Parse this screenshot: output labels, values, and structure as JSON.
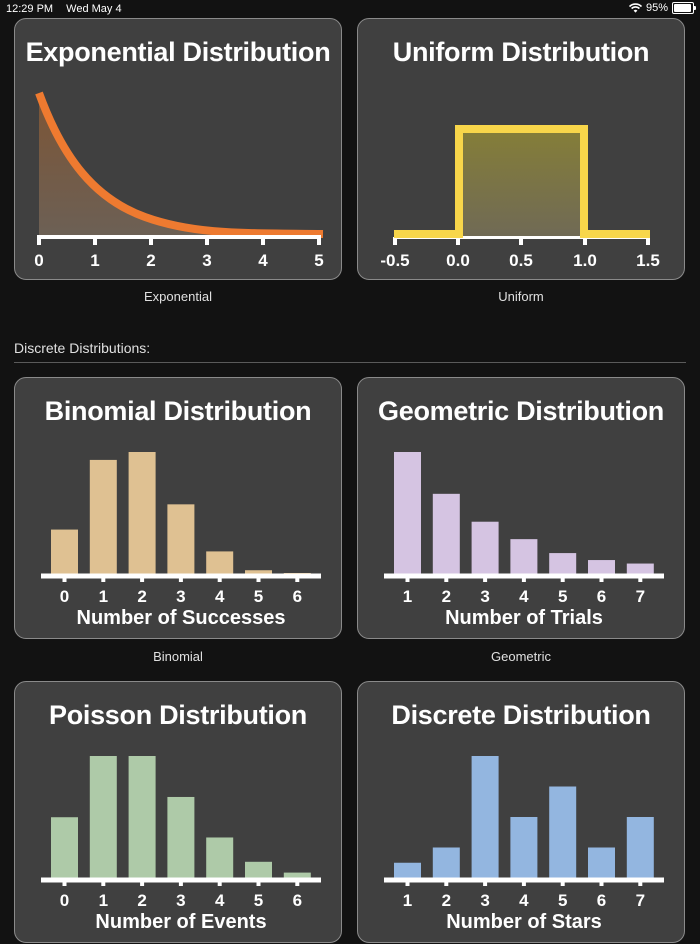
{
  "status_bar": {
    "time": "12:29 PM",
    "date": "Wed May 4",
    "battery": "95%",
    "battery_pct": 95
  },
  "continuous": {
    "cards": [
      {
        "title": "Exponential Distribution",
        "caption": "Exponential"
      },
      {
        "title": "Uniform Distribution",
        "caption": "Uniform"
      }
    ]
  },
  "section": {
    "label": "Discrete Distributions:"
  },
  "discrete": {
    "cards": [
      {
        "title": "Binomial Distribution",
        "caption": "Binomial",
        "xlabel": "Number of Successes"
      },
      {
        "title": "Geometric Distribution",
        "caption": "Geometric",
        "xlabel": "Number of Trials"
      },
      {
        "title": "Poisson Distribution",
        "caption": "",
        "xlabel": "Number of Events"
      },
      {
        "title": "Discrete Distribution",
        "caption": "",
        "xlabel": "Number of Stars"
      }
    ]
  },
  "chart_data": [
    {
      "type": "area",
      "title": "Exponential Distribution",
      "x": [
        0,
        1,
        2,
        3,
        4,
        5
      ],
      "xticks": [
        "0",
        "1",
        "2",
        "3",
        "4",
        "5"
      ],
      "y_shape": "exp(-x)",
      "color": "#ee7a30",
      "fill": "#7a5a42"
    },
    {
      "type": "area",
      "title": "Uniform Distribution",
      "x": [
        -0.5,
        0.0,
        0.5,
        1.0,
        1.5
      ],
      "xticks": [
        "-0.5",
        "0.0",
        "0.5",
        "1.0",
        "1.5"
      ],
      "support": [
        0,
        1
      ],
      "color": "#f8d64a",
      "fill": "#7f7a42"
    },
    {
      "type": "bar",
      "title": "Binomial Distribution",
      "xlabel": "Number of Successes",
      "categories": [
        "0",
        "1",
        "2",
        "3",
        "4",
        "5",
        "6"
      ],
      "values": [
        0.118,
        0.303,
        0.324,
        0.185,
        0.06,
        0.01,
        0.001
      ],
      "color": "#dfc192"
    },
    {
      "type": "bar",
      "title": "Geometric Distribution",
      "xlabel": "Number of Trials",
      "categories": [
        "1",
        "2",
        "3",
        "4",
        "5",
        "6",
        "7"
      ],
      "values": [
        0.35,
        0.23,
        0.15,
        0.1,
        0.06,
        0.04,
        0.03
      ],
      "color": "#d5c4e2"
    },
    {
      "type": "bar",
      "title": "Poisson Distribution",
      "xlabel": "Number of Events",
      "categories": [
        "0",
        "1",
        "2",
        "3",
        "4",
        "5",
        "6"
      ],
      "values": [
        0.135,
        0.271,
        0.271,
        0.18,
        0.09,
        0.036,
        0.012
      ],
      "color": "#aecaa8"
    },
    {
      "type": "bar",
      "title": "Discrete Distribution",
      "xlabel": "Number of Stars",
      "categories": [
        "1",
        "2",
        "3",
        "4",
        "5",
        "6",
        "7"
      ],
      "values": [
        1,
        2,
        8,
        4,
        6,
        2,
        4
      ],
      "color": "#93b6e0"
    }
  ]
}
